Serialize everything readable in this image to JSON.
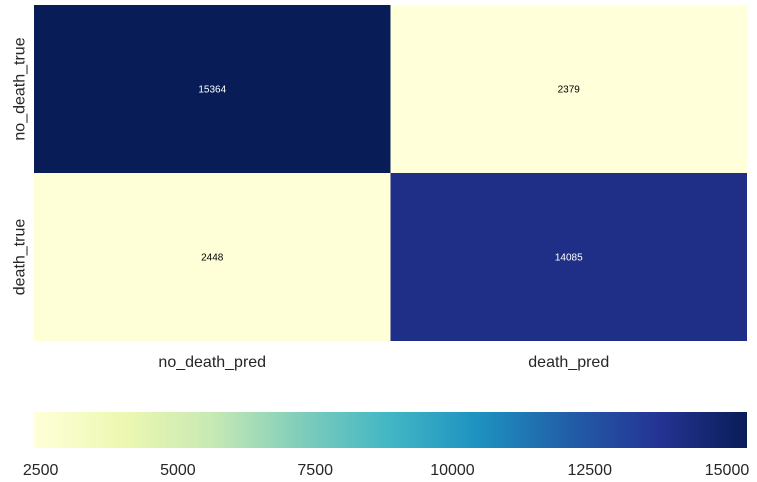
{
  "chart_data": {
    "type": "heatmap",
    "rows": [
      "no_death_true",
      "death_true"
    ],
    "columns": [
      "no_death_pred",
      "death_pred"
    ],
    "values": [
      [
        15364,
        2379
      ],
      [
        2448,
        14085
      ]
    ],
    "annotations": [
      "15364",
      "2379",
      "2448",
      "14085"
    ],
    "colormap": "YlGnBu",
    "colorbar": {
      "orientation": "horizontal",
      "placement": "bottom",
      "range": [
        2379,
        15364
      ],
      "ticks": [
        2500,
        5000,
        7500,
        10000,
        12500,
        15000
      ],
      "tick_labels": [
        "2500",
        "5000",
        "7500",
        "10000",
        "12500",
        "15000"
      ]
    },
    "colormap_stops": [
      "#ffffd9",
      "#edf8b1",
      "#c7e9b4",
      "#7fcdbb",
      "#41b6c4",
      "#1d91c0",
      "#225ea8",
      "#253494",
      "#081d58"
    ],
    "annotation_text_colors": {
      "light": "#000000",
      "dark": "#ffffff"
    }
  }
}
